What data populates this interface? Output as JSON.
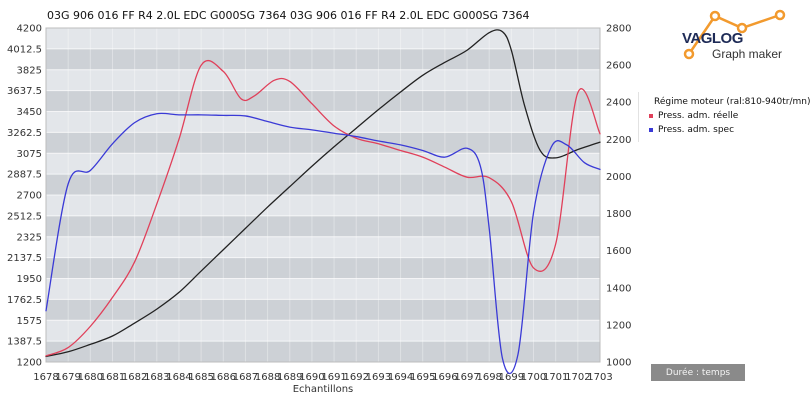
{
  "header": {
    "title": "03G 906 016 FF  R4 2.0L EDC G000SG  7364 03G 906 016 FF  R4 2.0L EDC G000SG  7364"
  },
  "logo": {
    "name": "VAGLOG",
    "subtitle": "Graph maker",
    "accent_color": "#f29a2e"
  },
  "duration_label": "Durée : temps",
  "chart_data": {
    "type": "line",
    "title": "03G 906 016 FF  R4 2.0L EDC G000SG  7364 03G 906 016 FF  R4 2.0L EDC G000SG  7364",
    "xlabel": "Echantillons",
    "x_tick_labels": [
      "1678",
      "1679",
      "1680",
      "1681",
      "1682",
      "1683",
      "1684",
      "1685",
      "1686",
      "1687",
      "1688",
      "1689",
      "1690",
      "1691",
      "1692",
      "1693",
      "1694",
      "1695",
      "1696",
      "1697",
      "1698",
      "1699",
      "1700",
      "1701",
      "1702",
      "1703"
    ],
    "xlim": [
      1678,
      1703
    ],
    "y_left": {
      "lim": [
        1200,
        4200
      ],
      "tick_labels": [
        "1200",
        "1387.5",
        "1575",
        "1762.5",
        "1950",
        "2137.5",
        "2325",
        "2512.5",
        "2700",
        "2887.5",
        "3075",
        "3262.5",
        "3450",
        "3637.5",
        "3825",
        "4012.5",
        "4200"
      ]
    },
    "y_right": {
      "lim": [
        1000,
        2800
      ],
      "tick_labels": [
        "1000",
        "1200",
        "1400",
        "1600",
        "1800",
        "2000",
        "2200",
        "2400",
        "2600",
        "2800"
      ]
    },
    "grid": true,
    "legend_position": "right",
    "series": [
      {
        "name": "Régime moteur (ral:810-940tr/mn)",
        "color": "#222222",
        "axis": "right",
        "points": [
          [
            1678,
            1030
          ],
          [
            1679,
            1055
          ],
          [
            1680,
            1095
          ],
          [
            1681,
            1140
          ],
          [
            1682,
            1210
          ],
          [
            1683,
            1285
          ],
          [
            1684,
            1375
          ],
          [
            1685,
            1490
          ],
          [
            1686,
            1605
          ],
          [
            1687,
            1720
          ],
          [
            1688,
            1835
          ],
          [
            1689,
            1945
          ],
          [
            1690,
            2055
          ],
          [
            1691,
            2160
          ],
          [
            1692,
            2260
          ],
          [
            1693,
            2360
          ],
          [
            1694,
            2455
          ],
          [
            1695,
            2545
          ],
          [
            1696,
            2615
          ],
          [
            1697,
            2680
          ],
          [
            1698,
            2775
          ],
          [
            1698.6,
            2780
          ],
          [
            1699,
            2680
          ],
          [
            1699.6,
            2380
          ],
          [
            1700.3,
            2140
          ],
          [
            1701,
            2100
          ],
          [
            1702,
            2145
          ],
          [
            1703,
            2185
          ]
        ]
      },
      {
        "name": "Press. adm. réelle",
        "color": "#e0405a",
        "axis": "left",
        "points": [
          [
            1678,
            1255
          ],
          [
            1679,
            1330
          ],
          [
            1680,
            1520
          ],
          [
            1681,
            1780
          ],
          [
            1682,
            2100
          ],
          [
            1683,
            2620
          ],
          [
            1684,
            3200
          ],
          [
            1685,
            3865
          ],
          [
            1686,
            3810
          ],
          [
            1686.8,
            3565
          ],
          [
            1687.4,
            3590
          ],
          [
            1688.3,
            3730
          ],
          [
            1689,
            3720
          ],
          [
            1690,
            3520
          ],
          [
            1691,
            3320
          ],
          [
            1692,
            3210
          ],
          [
            1693,
            3160
          ],
          [
            1694,
            3100
          ],
          [
            1695,
            3040
          ],
          [
            1696,
            2950
          ],
          [
            1697,
            2860
          ],
          [
            1698,
            2855
          ],
          [
            1699,
            2640
          ],
          [
            1700,
            2045
          ],
          [
            1701,
            2260
          ],
          [
            1702,
            3620
          ],
          [
            1703,
            3250
          ]
        ]
      },
      {
        "name": "Press. adm. spec",
        "color": "#3a3ad6",
        "axis": "left",
        "points": [
          [
            1678,
            1660
          ],
          [
            1679,
            2800
          ],
          [
            1680,
            2920
          ],
          [
            1681,
            3160
          ],
          [
            1682,
            3350
          ],
          [
            1683,
            3430
          ],
          [
            1684,
            3420
          ],
          [
            1685,
            3420
          ],
          [
            1686,
            3415
          ],
          [
            1687,
            3410
          ],
          [
            1688,
            3360
          ],
          [
            1689,
            3310
          ],
          [
            1690,
            3285
          ],
          [
            1691,
            3255
          ],
          [
            1692,
            3225
          ],
          [
            1693,
            3185
          ],
          [
            1694,
            3150
          ],
          [
            1695,
            3100
          ],
          [
            1696,
            3040
          ],
          [
            1697,
            3120
          ],
          [
            1697.6,
            2960
          ],
          [
            1698,
            2400
          ],
          [
            1698.6,
            1230
          ],
          [
            1699.3,
            1270
          ],
          [
            1700,
            2540
          ],
          [
            1700.8,
            3130
          ],
          [
            1701.5,
            3150
          ],
          [
            1702.3,
            2990
          ],
          [
            1703,
            2930
          ]
        ]
      }
    ]
  }
}
